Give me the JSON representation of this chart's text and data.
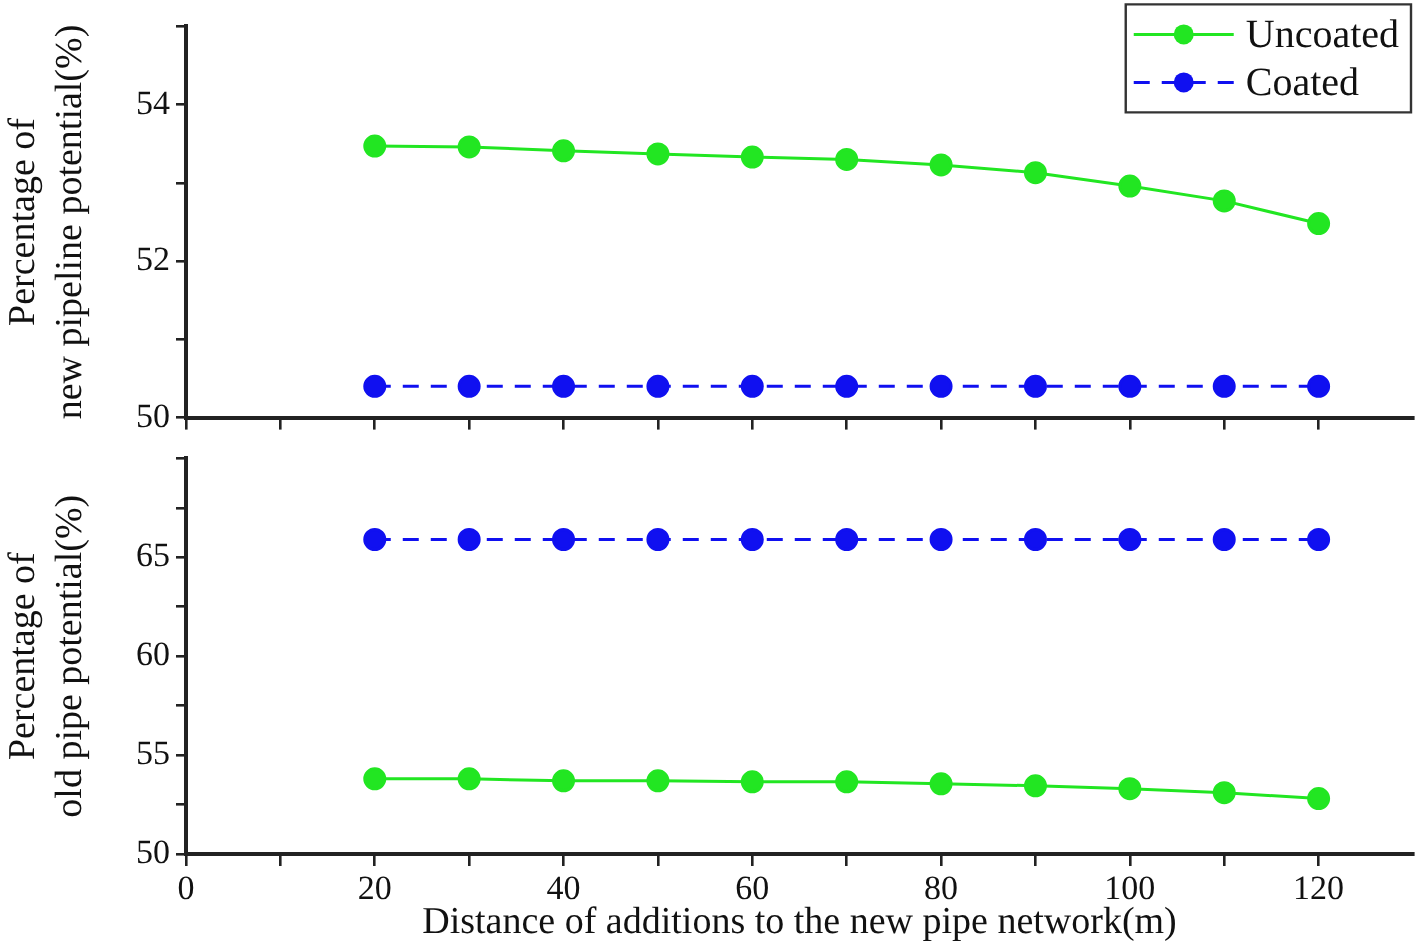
{
  "chart_data": [
    {
      "type": "line",
      "ylabel": "Percentage of\nnew pipeline potential(%)",
      "x": [
        20,
        30,
        40,
        50,
        60,
        70,
        80,
        90,
        100,
        110,
        120
      ],
      "series": [
        {
          "name": "Uncoated",
          "color": "#22e622",
          "line_style": "solid",
          "values": [
            53.47,
            53.46,
            53.41,
            53.37,
            53.33,
            53.3,
            53.23,
            53.13,
            52.96,
            52.77,
            52.48
          ]
        },
        {
          "name": "Coated",
          "color": "#1010f0",
          "line_style": "dashed",
          "values": [
            50.4,
            50.4,
            50.4,
            50.4,
            50.4,
            50.4,
            50.4,
            50.4,
            50.4,
            50.4,
            50.4
          ]
        }
      ],
      "xlim": [
        0,
        130
      ],
      "xticks": [
        0,
        {
          "value": 10,
          "label": null
        },
        {
          "value": 20,
          "label": null
        },
        {
          "value": 30,
          "label": null
        },
        {
          "value": 40,
          "label": null
        },
        {
          "value": 50,
          "label": null
        },
        {
          "value": 60,
          "label": null
        },
        {
          "value": 70,
          "label": null
        },
        {
          "value": 80,
          "label": null
        },
        {
          "value": 90,
          "label": null
        },
        {
          "value": 100,
          "label": null
        },
        {
          "value": 110,
          "label": null
        },
        {
          "value": 120,
          "label": null
        }
      ],
      "ylim": [
        50,
        55
      ],
      "yticks": [
        50,
        {
          "value": 51,
          "label": null
        },
        52,
        {
          "value": 53,
          "label": null
        },
        54,
        {
          "value": 55,
          "label": null
        }
      ],
      "tick_labels": "y",
      "marker": "circle",
      "grid": false,
      "legend": "top right"
    },
    {
      "type": "line",
      "xlabel": "Distance of additions to the new pipe network(m)",
      "ylabel": "Percentage of\nold pipe potential(%)",
      "x": [
        20,
        30,
        40,
        50,
        60,
        70,
        80,
        90,
        100,
        110,
        120
      ],
      "series": [
        {
          "color": "#1010f0",
          "line_style": "dashed",
          "values": [
            65.9,
            65.9,
            65.9,
            65.9,
            65.9,
            65.9,
            65.9,
            65.9,
            65.9,
            65.9,
            65.9
          ]
        },
        {
          "color": "#22e622",
          "line_style": "solid",
          "values": [
            53.8,
            53.8,
            53.7,
            53.7,
            53.65,
            53.65,
            53.55,
            53.45,
            53.3,
            53.1,
            52.8
          ]
        }
      ],
      "xlim": [
        0,
        130
      ],
      "xticks": [
        0,
        {
          "value": 10,
          "label": null
        },
        20,
        {
          "value": 30,
          "label": null
        },
        40,
        {
          "value": 50,
          "label": null
        },
        60,
        {
          "value": 70,
          "label": null
        },
        80,
        {
          "value": 90,
          "label": null
        },
        100,
        {
          "value": 110,
          "label": null
        },
        120
      ],
      "ylim": [
        50,
        70
      ],
      "yticks": [
        50,
        {
          "value": 52.5,
          "label": null
        },
        55,
        {
          "value": 57.5,
          "label": null
        },
        60,
        {
          "value": 62.5,
          "label": null
        },
        65,
        {
          "value": 67.5,
          "label": null
        },
        {
          "value": 70,
          "label": null
        }
      ],
      "marker": "circle",
      "grid": false,
      "legend": false
    }
  ]
}
